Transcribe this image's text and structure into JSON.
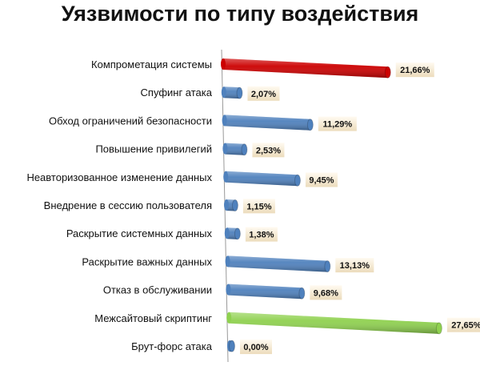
{
  "chart_data": {
    "type": "bar",
    "orientation": "horizontal",
    "title": "Уязвимости по типу воздействия",
    "categories": [
      "Компрометация системы",
      "Спуфинг атака",
      "Обход ограничений безопасности",
      "Повышение привилегий",
      "Неавторизованное изменение данных",
      "Внедрение в сессию пользователя",
      "Раскрытие системных данных",
      "Раскрытие важных данных",
      "Отказ в обслуживании",
      "Межсайтовый скриптинг",
      "Брут-форс атака"
    ],
    "values": [
      21.66,
      2.07,
      11.29,
      2.53,
      9.45,
      1.15,
      1.38,
      13.13,
      9.68,
      27.65,
      0.0
    ],
    "data_labels": [
      "21,66%",
      "2,07%",
      "11,29%",
      "2,53%",
      "9,45%",
      "1,15%",
      "1,38%",
      "13,13%",
      "9,68%",
      "27,65%",
      "0,00%"
    ],
    "bar_colors": [
      "#cc0000",
      "#4f81bd",
      "#4f81bd",
      "#4f81bd",
      "#4f81bd",
      "#4f81bd",
      "#4f81bd",
      "#4f81bd",
      "#4f81bd",
      "#8fd14f",
      "#4f81bd"
    ],
    "unit": "%",
    "grid": false,
    "legend": "none"
  }
}
